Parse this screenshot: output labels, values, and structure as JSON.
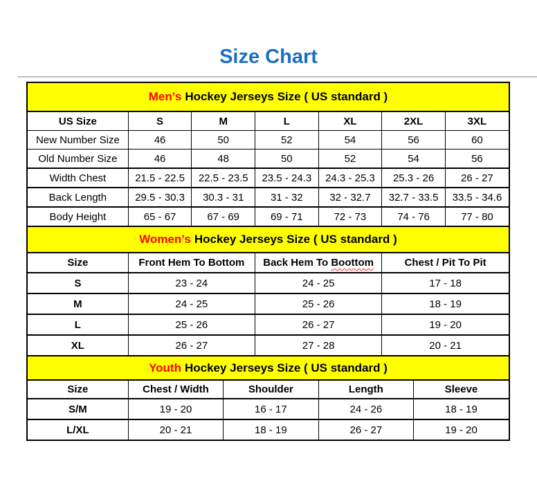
{
  "page": {
    "title": "Size Chart"
  },
  "colors": {
    "title_blue": "#1b6fc0",
    "band_yellow": "#ffff00",
    "accent_red": "#ff0000",
    "border_black": "#000000",
    "rule_gray": "#bfbfbf"
  },
  "tables": [
    {
      "id": "mens",
      "band": {
        "highlight": "Men’s",
        "rest": "Hockey Jerseys Size ( US standard )"
      },
      "columns": [
        "US Size",
        "S",
        "M",
        "L",
        "XL",
        "2XL",
        "3XL"
      ],
      "rows": [
        {
          "label": "New Number Size",
          "values": [
            "46",
            "50",
            "52",
            "54",
            "56",
            "60"
          ]
        },
        {
          "label": "Old Number Size",
          "values": [
            "46",
            "48",
            "50",
            "52",
            "54",
            "56"
          ]
        },
        {
          "label": "Width Chest",
          "values": [
            "21.5 - 22.5",
            "22.5 - 23.5",
            "23.5 - 24.3",
            "24.3 - 25.3",
            "25.3 - 26",
            "26 - 27"
          ]
        },
        {
          "label": "Back Length",
          "values": [
            "29.5 - 30.3",
            "30.3 - 31",
            "31 - 32",
            "32 - 32.7",
            "32.7 - 33.5",
            "33.5 - 34.6"
          ]
        },
        {
          "label": "Body Height",
          "values": [
            "65 - 67",
            "67 - 69",
            "69 - 71",
            "72 - 73",
            "74 - 76",
            "77 - 80"
          ]
        }
      ]
    },
    {
      "id": "womens",
      "band": {
        "highlight": "Women’s",
        "rest": "Hockey Jerseys Size ( US standard )"
      },
      "columns": [
        "Size",
        "Front Hem To Bottom",
        {
          "text": "Back Hem To ",
          "wavy": "Boottom"
        },
        "Chest / Pit To Pit"
      ],
      "rows": [
        {
          "label": "S",
          "values": [
            "23 - 24",
            "24 - 25",
            "17 - 18"
          ]
        },
        {
          "label": "M",
          "values": [
            "24 - 25",
            "25 - 26",
            "18 - 19"
          ]
        },
        {
          "label": "L",
          "values": [
            "25 - 26",
            "26 - 27",
            "19 - 20"
          ]
        },
        {
          "label": "XL",
          "values": [
            "26 - 27",
            "27 - 28",
            "20 - 21"
          ]
        }
      ]
    },
    {
      "id": "youth",
      "band": {
        "highlight": "Youth",
        "rest": "Hockey Jerseys Size ( US standard )"
      },
      "columns": [
        "Size",
        "Chest / Width",
        "Shoulder",
        "Length",
        "Sleeve"
      ],
      "rows": [
        {
          "label": "S/M",
          "values": [
            "19 - 20",
            "16 - 17",
            "24 - 26",
            "18 - 19"
          ]
        },
        {
          "label": "L/XL",
          "values": [
            "20 - 21",
            "18 - 19",
            "26 - 27",
            "19 - 20"
          ]
        }
      ]
    }
  ]
}
